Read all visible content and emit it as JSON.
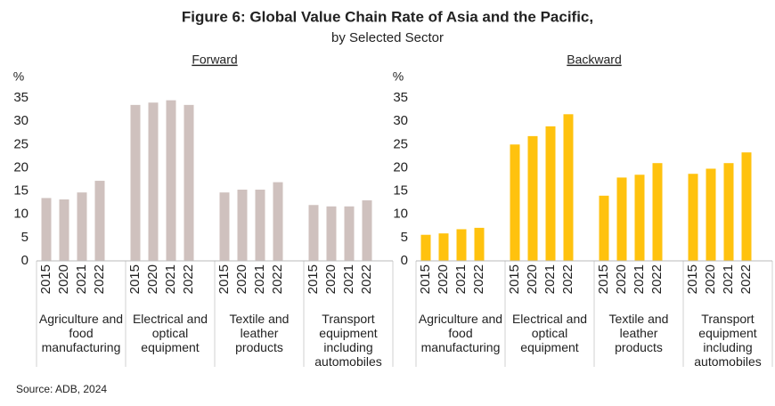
{
  "title": "Figure 6: Global Value Chain Rate of Asia and the Pacific,",
  "subtitle": "by Selected Sector",
  "source": "Source: ADB, 2024",
  "chart_data": [
    {
      "type": "bar",
      "title": "Forward",
      "y_label": "%",
      "color": "#cfc1be",
      "ylim": [
        0,
        35
      ],
      "yticks": [
        0,
        5,
        10,
        15,
        20,
        25,
        30,
        35
      ],
      "grid": false,
      "groups": [
        {
          "name": "Agriculture and food manufacturing",
          "categories": [
            "2015",
            "2020",
            "2021",
            "2022"
          ],
          "values": [
            13.5,
            13.2,
            14.7,
            17.2
          ]
        },
        {
          "name": "Electrical and optical equipment",
          "categories": [
            "2015",
            "2020",
            "2021",
            "2022"
          ],
          "values": [
            33.5,
            34.0,
            34.5,
            33.5
          ]
        },
        {
          "name": "Textile and leather products",
          "categories": [
            "2015",
            "2020",
            "2021",
            "2022"
          ],
          "values": [
            14.7,
            15.3,
            15.3,
            16.9
          ]
        },
        {
          "name": "Transport equipment including automobiles",
          "categories": [
            "2015",
            "2020",
            "2021",
            "2022"
          ],
          "values": [
            12.0,
            11.7,
            11.7,
            13.0
          ]
        }
      ]
    },
    {
      "type": "bar",
      "title": "Backward",
      "y_label": "%",
      "color": "#ffc20e",
      "ylim": [
        0,
        35
      ],
      "yticks": [
        0,
        5,
        10,
        15,
        20,
        25,
        30,
        35
      ],
      "grid": false,
      "groups": [
        {
          "name": "Agriculture and food manufacturing",
          "categories": [
            "2015",
            "2020",
            "2021",
            "2022"
          ],
          "values": [
            5.6,
            5.9,
            6.8,
            7.1
          ]
        },
        {
          "name": "Electrical and optical equipment",
          "categories": [
            "2015",
            "2020",
            "2021",
            "2022"
          ],
          "values": [
            25.0,
            26.8,
            28.9,
            31.5
          ]
        },
        {
          "name": "Textile and leather products",
          "categories": [
            "2015",
            "2020",
            "2021",
            "2022"
          ],
          "values": [
            14.0,
            17.9,
            18.5,
            21.0
          ]
        },
        {
          "name": "Transport equipment including automobiles",
          "categories": [
            "2015",
            "2020",
            "2021",
            "2022"
          ],
          "values": [
            18.7,
            19.8,
            21.0,
            23.3
          ]
        }
      ]
    }
  ]
}
